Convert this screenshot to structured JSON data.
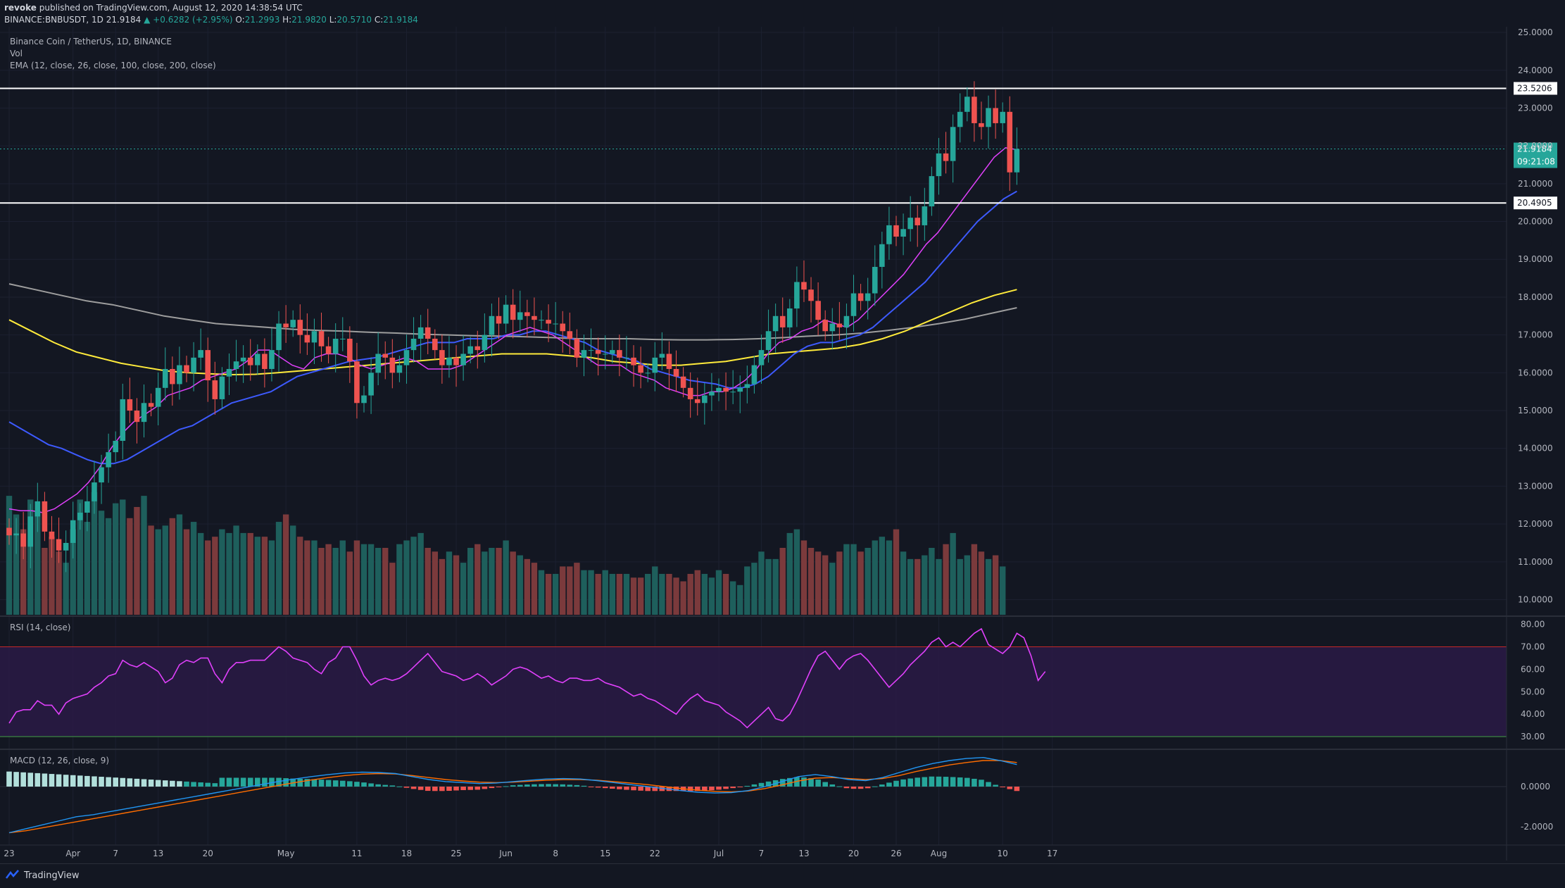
{
  "header": {
    "publisher": "revoke",
    "published_text": "published on TradingView.com, August 12, 2020 14:38:54 UTC",
    "symbol": "BINANCE:BNBUSDT, 1D",
    "last": "21.9184",
    "change": "▲ +0.6282 (+2.95%)",
    "o_label": "O:",
    "o": "21.2993",
    "h_label": "H:",
    "h": "21.9820",
    "l_label": "L:",
    "l": "20.5710",
    "c_label": "C:",
    "c": "21.9184"
  },
  "legend": {
    "title": "Binance Coin / TetherUS, 1D, BINANCE",
    "vol": "Vol",
    "ema": "EMA (12, close, 26, close, 100, close, 200, close)",
    "rsi": "RSI (14, close)",
    "macd": "MACD (12, 26, close, 9)"
  },
  "footer": {
    "brand": "TradingView"
  },
  "colors": {
    "up": "#26a69a",
    "down": "#ef5350",
    "vol_up": "#1e5f5c",
    "vol_down": "#7b3a3c",
    "ema12": "#e040fb",
    "ema26": "#3d5afe",
    "ema100": "#ffeb3b",
    "ema200": "#9e9e9e",
    "rsi": "#e040fb",
    "macd": "#2196f3",
    "signal": "#ff6d00"
  },
  "chart_data": {
    "type": "candlestick",
    "title": "Binance Coin / TetherUS, 1D, BINANCE",
    "price_ticks": [
      "25.0000",
      "24.0000",
      "23.0000",
      "22.0000",
      "21.0000",
      "20.0000",
      "19.0000",
      "18.0000",
      "17.0000",
      "16.0000",
      "15.0000",
      "14.0000",
      "13.0000",
      "12.0000",
      "11.0000",
      "10.0000"
    ],
    "price_range": [
      9.6,
      25.15
    ],
    "levels": [
      {
        "label": "23.5206",
        "value": 23.5206
      },
      {
        "label": "20.4905",
        "value": 20.4905
      }
    ],
    "last_price_label": "21.9184",
    "countdown_label": "09:21:08",
    "x_tick_labels": [
      {
        "label": "23",
        "index": 0
      },
      {
        "label": "Apr",
        "index": 9
      },
      {
        "label": "7",
        "index": 15
      },
      {
        "label": "13",
        "index": 21
      },
      {
        "label": "20",
        "index": 28
      },
      {
        "label": "May",
        "index": 39
      },
      {
        "label": "11",
        "index": 49
      },
      {
        "label": "18",
        "index": 56
      },
      {
        "label": "25",
        "index": 63
      },
      {
        "label": "Jun",
        "index": 70
      },
      {
        "label": "8",
        "index": 77
      },
      {
        "label": "15",
        "index": 84
      },
      {
        "label": "22",
        "index": 91
      },
      {
        "label": "Jul",
        "index": 100
      },
      {
        "label": "7",
        "index": 106
      },
      {
        "label": "13",
        "index": 112
      },
      {
        "label": "20",
        "index": 119
      },
      {
        "label": "26",
        "index": 125
      },
      {
        "label": "Aug",
        "index": 131
      },
      {
        "label": "10",
        "index": 140
      },
      {
        "label": "17",
        "index": 147
      }
    ],
    "closes": [
      11.7,
      11.75,
      11.4,
      12.2,
      12.6,
      11.8,
      11.6,
      11.3,
      11.5,
      12.1,
      12.3,
      12.6,
      13.1,
      13.5,
      13.9,
      14.2,
      15.3,
      15.0,
      14.7,
      15.2,
      15.1,
      15.6,
      16.1,
      15.7,
      16.2,
      16.0,
      16.4,
      16.6,
      15.8,
      15.3,
      15.9,
      16.1,
      16.3,
      16.4,
      16.2,
      16.5,
      16.1,
      16.6,
      17.3,
      17.2,
      17.4,
      17.0,
      16.8,
      17.1,
      16.7,
      16.5,
      16.9,
      16.9,
      16.3,
      15.2,
      15.4,
      16.0,
      16.5,
      16.4,
      16.0,
      16.2,
      16.6,
      16.9,
      17.2,
      16.9,
      16.6,
      16.2,
      16.4,
      16.2,
      16.5,
      16.7,
      16.6,
      17.0,
      17.5,
      17.3,
      17.8,
      17.4,
      17.6,
      17.5,
      17.4,
      17.4,
      17.3,
      17.3,
      17.1,
      16.9,
      16.4,
      16.6,
      16.6,
      16.5,
      16.5,
      16.6,
      16.4,
      16.4,
      16.2,
      16.0,
      16.0,
      16.4,
      16.5,
      16.1,
      15.9,
      15.6,
      15.3,
      15.2,
      15.4,
      15.5,
      15.6,
      15.5,
      15.5,
      15.6,
      15.7,
      16.2,
      16.6,
      17.1,
      17.5,
      17.2,
      17.7,
      18.4,
      18.2,
      17.9,
      17.4,
      17.1,
      17.3,
      17.2,
      17.5,
      18.1,
      17.9,
      18.1,
      18.8,
      19.4,
      19.9,
      19.6,
      19.8,
      20.1,
      19.9,
      20.4,
      21.2,
      21.8,
      21.6,
      22.5,
      22.9,
      23.3,
      22.6,
      22.5,
      23.0,
      22.6,
      22.9,
      21.3,
      21.9184
    ],
    "volumes": [
      12.8,
      12.3,
      11.9,
      12.7,
      12.4,
      11.4,
      11.7,
      11.3,
      11.0,
      11.9,
      12.7,
      12.1,
      12.9,
      12.4,
      12.2,
      12.6,
      12.7,
      12.2,
      12.5,
      12.8,
      12.0,
      11.9,
      12.0,
      12.2,
      12.3,
      11.9,
      12.1,
      11.8,
      11.6,
      11.7,
      11.9,
      11.8,
      12.0,
      11.8,
      11.8,
      11.7,
      11.7,
      11.6,
      12.1,
      12.3,
      12.0,
      11.7,
      11.6,
      11.6,
      11.4,
      11.5,
      11.4,
      11.6,
      11.3,
      11.6,
      11.5,
      11.5,
      11.4,
      11.4,
      11.0,
      11.5,
      11.6,
      11.7,
      11.8,
      11.4,
      11.3,
      11.1,
      11.3,
      11.2,
      11.0,
      11.4,
      11.5,
      11.3,
      11.4,
      11.4,
      11.6,
      11.3,
      11.2,
      11.1,
      11.0,
      10.8,
      10.7,
      10.7,
      10.9,
      10.9,
      11.0,
      10.8,
      10.8,
      10.7,
      10.8,
      10.7,
      10.7,
      10.7,
      10.6,
      10.6,
      10.7,
      10.9,
      10.7,
      10.7,
      10.6,
      10.5,
      10.7,
      10.8,
      10.7,
      10.6,
      10.8,
      10.7,
      10.5,
      10.4,
      10.9,
      11.0,
      11.3,
      11.1,
      11.1,
      11.4,
      11.8,
      11.9,
      11.6,
      11.4,
      11.3,
      11.2,
      11.0,
      11.3,
      11.5,
      11.5,
      11.3,
      11.4,
      11.6,
      11.7,
      11.6,
      11.9,
      11.3,
      11.1,
      11.1,
      11.2,
      11.4,
      11.1,
      11.5,
      11.8,
      11.1,
      11.2,
      11.5,
      11.3,
      11.1,
      11.2,
      10.9
    ],
    "ema12": [
      12.4,
      12.35,
      12.35,
      12.3,
      12.4,
      12.6,
      12.8,
      13.1,
      13.5,
      14.0,
      14.4,
      14.7,
      14.9,
      15.1,
      15.4,
      15.5,
      15.6,
      15.8,
      15.9,
      16.0,
      16.1,
      16.3,
      16.6,
      16.6,
      16.4,
      16.2,
      16.1,
      16.4,
      16.5,
      16.5,
      16.4,
      16.2,
      16.1,
      16.2,
      16.3,
      16.4,
      16.3,
      16.1,
      16.1,
      16.1,
      16.2,
      16.4,
      16.6,
      16.8,
      17.0,
      17.1,
      17.2,
      17.1,
      17.0,
      16.8,
      16.6,
      16.4,
      16.2,
      16.2,
      16.2,
      16.0,
      15.9,
      15.8,
      15.6,
      15.5,
      15.4,
      15.4,
      15.5,
      15.5,
      15.6,
      15.8,
      16.1,
      16.5,
      16.8,
      16.9,
      17.1,
      17.2,
      17.4,
      17.3,
      17.2,
      17.4,
      17.7,
      18.0,
      18.3,
      18.6,
      19.0,
      19.4,
      19.7,
      20.1,
      20.5,
      20.9,
      21.3,
      21.7,
      21.95,
      21.9
    ],
    "ema26": [
      14.7,
      14.5,
      14.3,
      14.1,
      14.0,
      13.85,
      13.7,
      13.6,
      13.6,
      13.7,
      13.9,
      14.1,
      14.3,
      14.5,
      14.6,
      14.8,
      15.0,
      15.2,
      15.3,
      15.4,
      15.5,
      15.7,
      15.9,
      16.0,
      16.1,
      16.2,
      16.3,
      16.35,
      16.4,
      16.5,
      16.6,
      16.7,
      16.8,
      16.8,
      16.8,
      16.9,
      16.9,
      16.9,
      17.0,
      17.0,
      17.1,
      17.1,
      17.0,
      16.9,
      16.8,
      16.6,
      16.5,
      16.4,
      16.3,
      16.1,
      16.0,
      15.9,
      15.8,
      15.75,
      15.7,
      15.6,
      15.6,
      15.7,
      15.9,
      16.2,
      16.5,
      16.7,
      16.8,
      16.8,
      16.9,
      17.0,
      17.2,
      17.5,
      17.8,
      18.1,
      18.4,
      18.8,
      19.2,
      19.6,
      20.0,
      20.3,
      20.6,
      20.8
    ],
    "ema100": [
      17.4,
      17.1,
      16.8,
      16.55,
      16.4,
      16.25,
      16.15,
      16.05,
      16.0,
      15.97,
      15.95,
      15.96,
      16.0,
      16.05,
      16.1,
      16.15,
      16.2,
      16.25,
      16.3,
      16.35,
      16.4,
      16.45,
      16.5,
      16.5,
      16.5,
      16.45,
      16.4,
      16.3,
      16.25,
      16.2,
      16.2,
      16.25,
      16.3,
      16.4,
      16.5,
      16.55,
      16.6,
      16.65,
      16.75,
      16.9,
      17.1,
      17.35,
      17.6,
      17.85,
      18.05,
      18.2
    ],
    "ema200": [
      18.35,
      18.2,
      18.05,
      17.9,
      17.8,
      17.65,
      17.5,
      17.4,
      17.3,
      17.25,
      17.2,
      17.15,
      17.12,
      17.1,
      17.07,
      17.05,
      17.02,
      17.0,
      16.98,
      16.97,
      16.95,
      16.93,
      16.9,
      16.9,
      16.9,
      16.88,
      16.87,
      16.87,
      16.88,
      16.9,
      16.93,
      16.97,
      17.0,
      17.05,
      17.12,
      17.2,
      17.3,
      17.42,
      17.57,
      17.72
    ],
    "rsi_ticks": [
      "80.00",
      "70.00",
      "60.00",
      "50.00",
      "40.00",
      "30.00"
    ],
    "rsi_levels": [
      70,
      30
    ],
    "rsi": [
      36,
      41,
      42,
      42,
      46,
      44,
      44,
      40,
      45,
      47,
      48,
      49,
      52,
      54,
      57,
      58,
      64,
      62,
      61,
      63,
      61,
      59,
      54,
      56,
      62,
      64,
      63,
      65,
      65,
      58,
      54,
      60,
      63,
      63,
      64,
      64,
      64,
      67,
      70,
      68,
      65,
      64,
      63,
      60,
      58,
      63,
      65,
      70,
      70,
      64,
      57,
      53,
      55,
      56,
      55,
      56,
      58,
      61,
      64,
      67,
      63,
      59,
      58,
      57,
      55,
      56,
      58,
      56,
      53,
      55,
      57,
      60,
      61,
      60,
      58,
      56,
      57,
      55,
      54,
      56,
      56,
      55,
      55,
      56,
      54,
      53,
      52,
      50,
      48,
      49,
      47,
      46,
      44,
      42,
      40,
      44,
      47,
      49,
      46,
      45,
      44,
      41,
      39,
      37,
      34,
      37,
      40,
      43,
      38,
      37,
      40,
      46,
      53,
      60,
      66,
      68,
      64,
      60,
      64,
      66,
      67,
      64,
      60,
      56,
      52,
      55,
      58,
      62,
      65,
      68,
      72,
      74,
      70,
      72,
      70,
      73,
      76,
      78,
      71,
      69,
      67,
      70,
      76,
      74,
      66,
      55,
      59
    ],
    "macd_ticks": [
      "0.0000",
      "-2.0000"
    ],
    "macd": [
      -2.3,
      -2.1,
      -1.9,
      -1.7,
      -1.5,
      -1.4,
      -1.25,
      -1.1,
      -0.95,
      -0.8,
      -0.65,
      -0.5,
      -0.35,
      -0.2,
      -0.05,
      0.1,
      0.25,
      0.38,
      0.5,
      0.6,
      0.68,
      0.72,
      0.7,
      0.65,
      0.5,
      0.35,
      0.25,
      0.2,
      0.15,
      0.18,
      0.25,
      0.32,
      0.38,
      0.4,
      0.38,
      0.3,
      0.2,
      0.1,
      0.0,
      -0.1,
      -0.2,
      -0.28,
      -0.32,
      -0.3,
      -0.2,
      0.0,
      0.25,
      0.5,
      0.6,
      0.5,
      0.35,
      0.3,
      0.45,
      0.7,
      0.95,
      1.15,
      1.3,
      1.4,
      1.45,
      1.3,
      1.1
    ],
    "signal": [
      -2.3,
      -2.2,
      -2.05,
      -1.9,
      -1.75,
      -1.6,
      -1.45,
      -1.3,
      -1.15,
      -1.0,
      -0.85,
      -0.7,
      -0.55,
      -0.4,
      -0.25,
      -0.1,
      0.05,
      0.2,
      0.33,
      0.45,
      0.55,
      0.62,
      0.65,
      0.63,
      0.55,
      0.45,
      0.35,
      0.28,
      0.22,
      0.2,
      0.22,
      0.27,
      0.32,
      0.35,
      0.35,
      0.32,
      0.25,
      0.18,
      0.1,
      0.0,
      -0.1,
      -0.18,
      -0.24,
      -0.26,
      -0.22,
      -0.1,
      0.08,
      0.28,
      0.42,
      0.45,
      0.4,
      0.35,
      0.4,
      0.55,
      0.75,
      0.92,
      1.08,
      1.2,
      1.3,
      1.3,
      1.2
    ]
  }
}
